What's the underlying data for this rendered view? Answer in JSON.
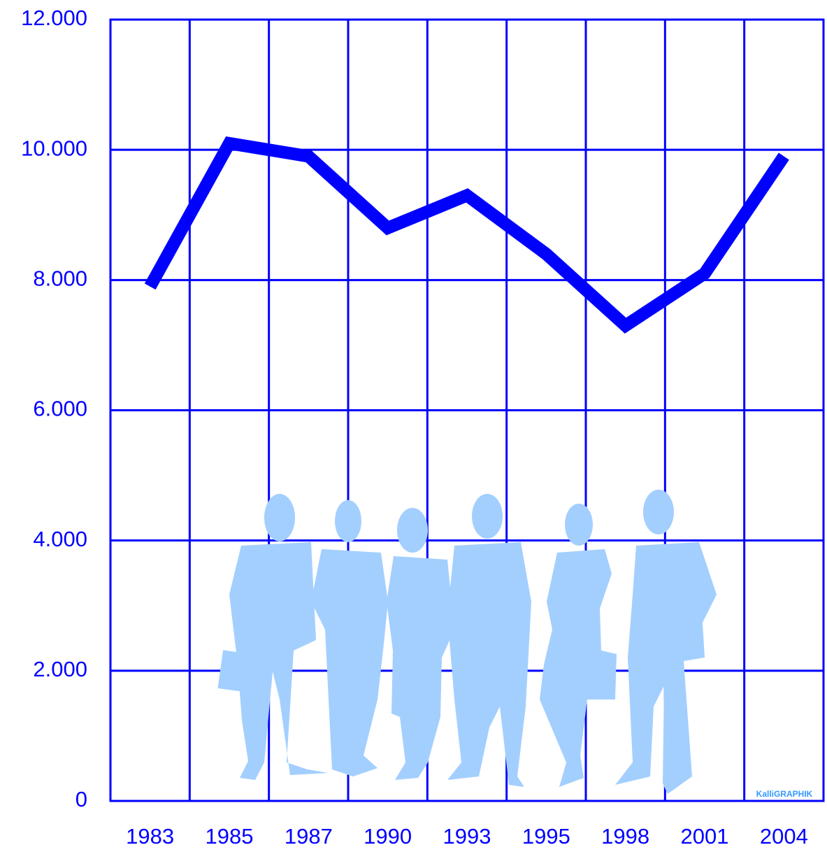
{
  "chart_data": {
    "type": "line",
    "categories": [
      "1983",
      "1985",
      "1987",
      "1990",
      "1993",
      "1995",
      "1998",
      "2001",
      "2004"
    ],
    "series": [
      {
        "color": "#0000ff",
        "values": [
          7900,
          10100,
          9900,
          8800,
          9300,
          8400,
          7300,
          8100,
          9900
        ]
      }
    ],
    "ylim": [
      0,
      12000
    ],
    "yticks": [
      0,
      {
        "value": 2000,
        "label": "2.000"
      },
      {
        "value": 4000,
        "label": "4.000"
      },
      {
        "value": 6000,
        "label": "6.000"
      },
      {
        "value": 8000,
        "label": "8.000"
      },
      {
        "value": 10000,
        "label": "10.000"
      },
      {
        "value": 12000,
        "label": "12.000"
      }
    ],
    "grid": true,
    "watermark": "KalliGRAPHIK"
  }
}
